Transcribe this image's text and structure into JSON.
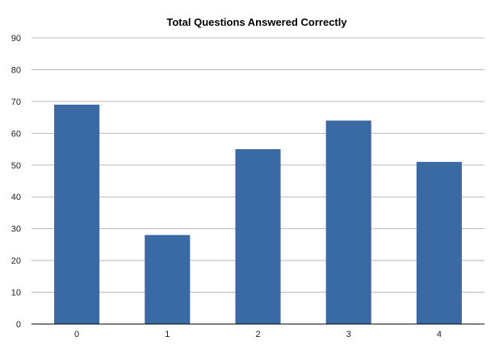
{
  "chart_data": {
    "type": "bar",
    "title": "Total Questions Answered Correctly",
    "categories": [
      "0",
      "1",
      "2",
      "3",
      "4"
    ],
    "values": [
      69,
      28,
      55,
      64,
      51
    ],
    "xlabel": "",
    "ylabel": "",
    "ylim": [
      0,
      90
    ],
    "yticks": [
      0,
      10,
      20,
      30,
      40,
      50,
      60,
      70,
      80,
      90
    ],
    "grid": true,
    "legend": "none",
    "colors": {
      "bar": "#3a6aa3",
      "grid": "#b8b8b8",
      "axis": "#000000"
    }
  }
}
